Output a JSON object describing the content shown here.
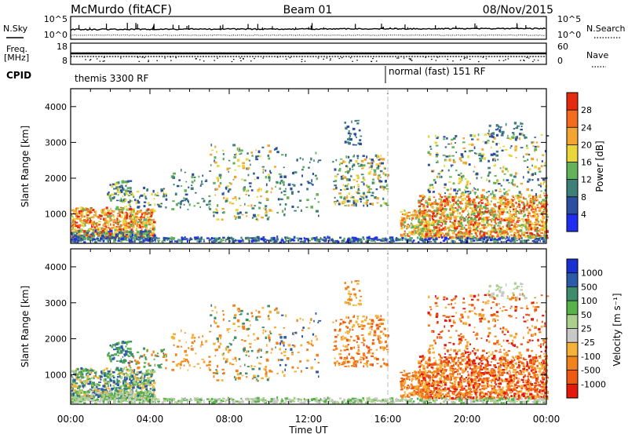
{
  "header": {
    "station": "McMurdo (fitACF)",
    "beam": "Beam 01",
    "date": "08/Nov/2015"
  },
  "status_panel": {
    "nsky_label": "N.Sky",
    "nsearch_label": "N.Search",
    "freq_label_1": "Freq.",
    "freq_label_2": "[MHz]",
    "nave_label": "Nave",
    "cpid_label": "CPID",
    "noise_ticks_left": [
      "10^5",
      "10^0"
    ],
    "noise_ticks_right": [
      "10^5",
      "10^0"
    ],
    "freq_ticks": [
      "18",
      "8"
    ],
    "nave_ticks": [
      "60",
      "0"
    ],
    "cpid_segments": [
      {
        "text": "themis 3300 RF",
        "start_hour": 0
      },
      {
        "text": "normal (fast) 151 RF",
        "start_hour": 16
      }
    ]
  },
  "chart_data": [
    {
      "type": "heatmap",
      "name": "power",
      "ylabel": "Slant Range [km]",
      "xlabel": "",
      "xlim_hours": [
        0,
        24
      ],
      "ylim_km": [
        180,
        4500
      ],
      "yticks": [
        "1000",
        "2000",
        "3000",
        "4000"
      ],
      "xticks": [
        "00:00",
        "04:00",
        "08:00",
        "12:00",
        "16:00",
        "20:00",
        "00:00"
      ],
      "colorbar": {
        "label": "Power [dB]",
        "ticks": [
          "4",
          "8",
          "12",
          "16",
          "20",
          "24",
          "28"
        ],
        "colors": [
          "#1f2df0",
          "#2c4fa0",
          "#3f7f7a",
          "#63b25a",
          "#e9d63b",
          "#f3a534",
          "#f36b1e",
          "#e62a10"
        ]
      }
    },
    {
      "type": "heatmap",
      "name": "velocity",
      "ylabel": "Slant Range [km]",
      "xlabel": "Time UT",
      "xlim_hours": [
        0,
        24
      ],
      "ylim_km": [
        180,
        4500
      ],
      "yticks": [
        "1000",
        "2000",
        "3000",
        "4000"
      ],
      "xticks": [
        "00:00",
        "04:00",
        "08:00",
        "12:00",
        "16:00",
        "20:00",
        "00:00"
      ],
      "colorbar": {
        "label": "Velocity [m s⁻¹]",
        "ticks": [
          "1000",
          "500",
          "100",
          "50",
          "25",
          "-25",
          "-100",
          "-500",
          "-1000"
        ],
        "colors": [
          "#1a2fd1",
          "#2b5aa8",
          "#3d8c6c",
          "#58b24a",
          "#a9d08c",
          "#c8c8c8",
          "#f5b23a",
          "#f2831c",
          "#ee5a14",
          "#e3190e"
        ]
      }
    }
  ]
}
